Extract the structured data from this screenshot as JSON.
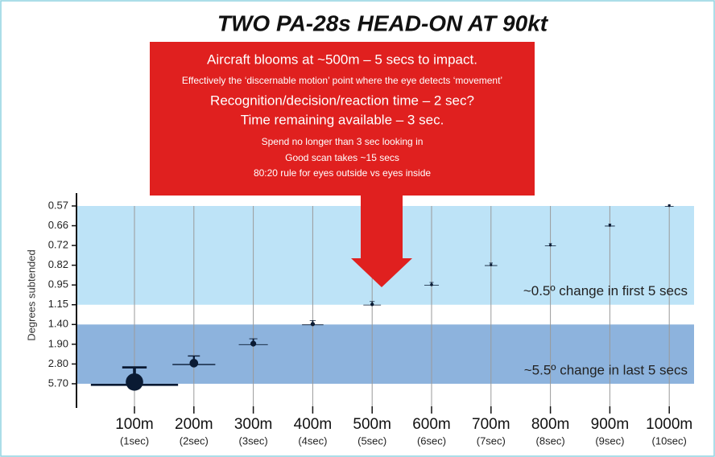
{
  "chart_data": {
    "type": "scatter",
    "title": "TWO PA-28s HEAD-ON AT 90kt",
    "callout": {
      "color": "#e0201f",
      "lines": [
        "Aircraft blooms at ~500m – 5 secs to impact.",
        "Effectively the ‘discernable motion’ point where the eye detects ‘movement’",
        "Recognition/decision/reaction time – 2 sec?",
        "Time remaining available – 3 sec.",
        "Spend no longer than 3 sec looking in",
        "Good scan takes ~15 secs",
        "80:20 rule for eyes outside vs eyes inside"
      ]
    },
    "y_label": "Degrees subtended",
    "yticks": [
      0.57,
      0.66,
      0.72,
      0.82,
      0.95,
      1.15,
      {
        "value": 1.4,
        "label": "1.40"
      },
      {
        "value": 1.9,
        "label": "1.90"
      },
      {
        "value": 2.8,
        "label": "2.80"
      },
      {
        "value": 5.7,
        "label": "5.70"
      }
    ],
    "categories": [
      "100m",
      "200m",
      "300m",
      "400m",
      "500m",
      "600m",
      "700m",
      "800m",
      "900m",
      "1000m"
    ],
    "sublabels": [
      "(1sec)",
      "(2sec)",
      "(3sec)",
      "(4sec)",
      "(5sec)",
      "(6sec)",
      "(7sec)",
      "(8sec)",
      "(9sec)",
      "(10sec)"
    ],
    "values": [
      5.7,
      2.8,
      1.9,
      1.4,
      1.15,
      0.95,
      0.82,
      0.72,
      0.66,
      0.57
    ],
    "color": "#0a1a33",
    "bands": [
      {
        "label": "~0.5º change in first 5 secs",
        "from": 0.57,
        "to": 1.15,
        "color": "#bde3f7"
      },
      {
        "label": "~5.5º change in last 5 secs",
        "from": 1.4,
        "to": 5.7,
        "color": "#8db3dd"
      }
    ],
    "grid": true
  }
}
